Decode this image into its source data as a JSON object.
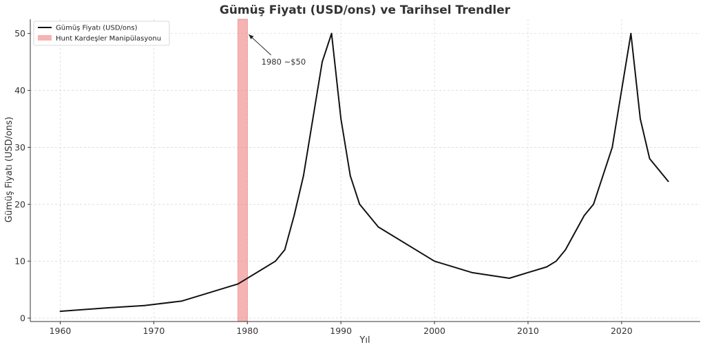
{
  "chart_data": {
    "type": "line",
    "title": "Gümüş Fiyatı (USD/ons) ve Tarihsel Trendler",
    "xlabel": "Yıl",
    "ylabel": "Gümüş Fiyatı (USD/ons)",
    "xlim": [
      1956.8,
      2028.4
    ],
    "ylim": [
      -0.6,
      52.5
    ],
    "xticks": [
      1960,
      1970,
      1980,
      1990,
      2000,
      2010,
      2020
    ],
    "yticks": [
      0,
      10,
      20,
      30,
      40,
      50
    ],
    "grid": true,
    "legend_position": "top-left",
    "series": [
      {
        "name": "Gümüş Fiyatı (USD/ons)",
        "color": "#111111",
        "x": [
          1960,
          1965,
          1969,
          1973,
          1979,
          1983,
          1984,
          1985,
          1986,
          1987,
          1988,
          1989,
          1990,
          1991,
          1992,
          1994,
          2000,
          2004,
          2006,
          2008,
          2010,
          2012,
          2013,
          2014,
          2016,
          2017,
          2019,
          2020,
          2021,
          2022,
          2023,
          2025
        ],
        "y": [
          1.2,
          1.8,
          2.2,
          3.0,
          6.0,
          10.0,
          12.0,
          18.0,
          25.0,
          35.0,
          45.0,
          50.0,
          35.0,
          25.0,
          20.0,
          16.0,
          10.0,
          8.0,
          7.5,
          7.0,
          8.0,
          9.0,
          10.0,
          12.0,
          18.0,
          20.0,
          30.0,
          40.0,
          50.0,
          35.0,
          28.0,
          24.0
        ]
      }
    ],
    "shaded_regions": [
      {
        "name": "Hunt Kardeşler Manipülasyonu",
        "x_start": 1979,
        "x_end": 1980,
        "color": "#f08080",
        "opacity": 0.6
      }
    ],
    "annotations": [
      {
        "text": "1980 ~$50",
        "x": 1980,
        "y": 50,
        "text_x": 1981.5,
        "text_y": 45
      }
    ]
  }
}
